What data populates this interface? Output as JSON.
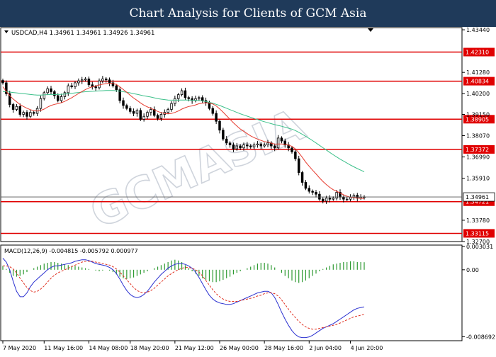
{
  "header": {
    "title": "Chart Analysis for Clients of GCM Asia"
  },
  "watermark": "GCMASIA",
  "colors": {
    "level_line": "#e00000",
    "ma_fast": "#e63a2e",
    "ma_slow": "#3cc08a",
    "candle": "#000000",
    "macd_hist": "#2e9a32",
    "macd_main": "#2a30d0",
    "macd_signal": "#e03020",
    "header_bg": "#1f3a5a"
  },
  "chart_data": [
    {
      "type": "candlestick",
      "title": "USDCAD,H4  1.34961 1.34961 1.34926 1.34961",
      "symbol": "USDCAD,H4",
      "ohlc_label": "1.34961 1.34961 1.34926 1.34961",
      "current_price": 1.34961,
      "current_price_label": "1.34961",
      "ylim": [
        1.327,
        1.4355
      ],
      "y_ticks": [
        "1.43440",
        "1.42310",
        "1.41280",
        "1.40834",
        "1.40200",
        "1.39150",
        "1.38905",
        "1.38070",
        "1.37372",
        "1.36990",
        "1.35910",
        "1.34961",
        "1.34721",
        "1.33780",
        "1.33115",
        "1.32700"
      ],
      "horizontal_levels": [
        1.4231,
        1.40834,
        1.38905,
        1.37372,
        1.34721,
        1.33115
      ],
      "level_labels": [
        "1.42310",
        "1.40834",
        "1.38905",
        "1.37372",
        "1.34721",
        "1.33115"
      ],
      "closes": [
        1.4075,
        1.402,
        1.3965,
        1.394,
        1.3955,
        1.3915,
        1.3925,
        1.3905,
        1.3925,
        1.392,
        1.3945,
        1.3995,
        1.4025,
        1.4045,
        1.403,
        1.401,
        1.3985,
        1.4005,
        1.4025,
        1.406,
        1.4055,
        1.4075,
        1.4085,
        1.409,
        1.4095,
        1.4065,
        1.4055,
        1.405,
        1.4085,
        1.4095,
        1.409,
        1.4075,
        1.406,
        1.404,
        1.3985,
        1.396,
        1.3945,
        1.393,
        1.392,
        1.3935,
        1.389,
        1.3905,
        1.3925,
        1.394,
        1.391,
        1.3895,
        1.3915,
        1.3925,
        1.394,
        1.397,
        1.3995,
        1.4015,
        1.4035,
        1.4,
        1.3995,
        1.3985,
        1.3995,
        1.4,
        1.3985,
        1.3975,
        1.3945,
        1.392,
        1.388,
        1.3835,
        1.379,
        1.377,
        1.376,
        1.374,
        1.3755,
        1.3745,
        1.376,
        1.3755,
        1.375,
        1.376,
        1.3765,
        1.3755,
        1.376,
        1.377,
        1.3755,
        1.3745,
        1.3795,
        1.378,
        1.376,
        1.3745,
        1.3725,
        1.369,
        1.362,
        1.357,
        1.354,
        1.3525,
        1.352,
        1.351,
        1.3485,
        1.3475,
        1.349,
        1.3485,
        1.349,
        1.352,
        1.3495,
        1.3485,
        1.3485,
        1.3495,
        1.3505,
        1.349,
        1.3495,
        1.34961
      ],
      "ma_fast": [
        1.4055,
        1.4032,
        1.401,
        1.3993,
        1.3979,
        1.3965,
        1.3955,
        1.3946,
        1.3939,
        1.3934,
        1.3932,
        1.3935,
        1.3942,
        1.3952,
        1.396,
        1.3966,
        1.3969,
        1.3974,
        1.3981,
        1.399,
        1.3999,
        1.401,
        1.4021,
        1.4031,
        1.4041,
        1.4049,
        1.4055,
        1.4059,
        1.4064,
        1.4068,
        1.4071,
        1.4072,
        1.4071,
        1.4067,
        1.4055,
        1.4041,
        1.4027,
        1.4012,
        1.3998,
        1.3986,
        1.3973,
        1.3962,
        1.3953,
        1.3946,
        1.3938,
        1.393,
        1.3924,
        1.392,
        1.3918,
        1.392,
        1.3925,
        1.3932,
        1.3942,
        1.3949,
        1.3955,
        1.3958,
        1.3963,
        1.3969,
        1.3972,
        1.3974,
        1.3972,
        1.3968,
        1.3958,
        1.3943,
        1.3926,
        1.3908,
        1.389,
        1.3872,
        1.3856,
        1.3841,
        1.3829,
        1.3817,
        1.3806,
        1.3797,
        1.379,
        1.3783,
        1.3777,
        1.3774,
        1.3769,
        1.3764,
        1.3765,
        1.3765,
        1.3763,
        1.3759,
        1.3753,
        1.374,
        1.372,
        1.3697,
        1.3673,
        1.3652,
        1.3632,
        1.3613,
        1.3593,
        1.3575,
        1.3559,
        1.3545,
        1.3533,
        1.3525,
        1.3516,
        1.3507,
        1.35,
        1.3495,
        1.3493,
        1.349,
        1.3489,
        1.3489
      ],
      "ma_slow_start_index": 0,
      "ma_slow": [
        1.403,
        1.403,
        1.4028,
        1.4026,
        1.4024,
        1.4022,
        1.402,
        1.4018,
        1.4016,
        1.4014,
        1.4013,
        1.4013,
        1.4014,
        1.4015,
        1.4016,
        1.4016,
        1.4016,
        1.4017,
        1.4018,
        1.402,
        1.4022,
        1.4024,
        1.4026,
        1.4028,
        1.403,
        1.4031,
        1.4032,
        1.4033,
        1.4034,
        1.4035,
        1.4036,
        1.4036,
        1.4036,
        1.4035,
        1.4033,
        1.403,
        1.4027,
        1.4024,
        1.402,
        1.4017,
        1.4013,
        1.4009,
        1.4006,
        1.4003,
        1.3999,
        1.3995,
        1.3992,
        1.399,
        1.3988,
        1.3987,
        1.3987,
        1.3987,
        1.3988,
        1.3988,
        1.3988,
        1.3987,
        1.3986,
        1.3985,
        1.3983,
        1.398,
        1.3976,
        1.3972,
        1.3966,
        1.396,
        1.3953,
        1.3946,
        1.3939,
        1.3932,
        1.3925,
        1.3918,
        1.3912,
        1.3906,
        1.39,
        1.3894,
        1.3889,
        1.3883,
        1.3878,
        1.3873,
        1.3868,
        1.3863,
        1.3859,
        1.3855,
        1.385,
        1.3845,
        1.384,
        1.3833,
        1.3824,
        1.3814,
        1.3804,
        1.3793,
        1.3782,
        1.377,
        1.3758,
        1.3746,
        1.3734,
        1.3722,
        1.371,
        1.3699,
        1.3688,
        1.3678,
        1.3668,
        1.3658,
        1.3649,
        1.364,
        1.3632,
        1.3624
      ]
    },
    {
      "type": "macd",
      "title": "MACD(12,26,9) -0.004815 -0.005792 0.000977",
      "name": "MACD(12,26,9)",
      "values_label": "-0.004815 -0.005792 0.000977",
      "ylim": [
        -0.0092,
        0.0032
      ],
      "y_ticks": [
        "0.003031",
        "0.00",
        "-0.008692"
      ],
      "histogram": [
        0.0005,
        0.0001,
        -0.0004,
        -0.0008,
        -0.0009,
        -0.0008,
        -0.0006,
        -0.0003,
        0.0,
        0.0002,
        0.0004,
        0.0006,
        0.0008,
        0.0009,
        0.001,
        0.001,
        0.0009,
        0.0008,
        0.0007,
        0.0006,
        0.0005,
        0.0005,
        0.0004,
        0.0003,
        0.0002,
        0.0001,
        0.0,
        -0.0001,
        -0.0002,
        -0.0001,
        0.0,
        -0.0001,
        -0.0003,
        -0.0006,
        -0.0009,
        -0.0011,
        -0.0012,
        -0.0011,
        -0.001,
        -0.0008,
        -0.0006,
        -0.0004,
        -0.0002,
        0.0,
        0.0002,
        0.0004,
        0.0006,
        0.0008,
        0.001,
        0.0012,
        0.0013,
        0.0012,
        0.001,
        0.0006,
        0.0002,
        -0.0002,
        -0.0005,
        -0.0008,
        -0.0011,
        -0.0013,
        -0.0015,
        -0.0016,
        -0.0016,
        -0.0015,
        -0.0013,
        -0.0011,
        -0.0009,
        -0.0006,
        -0.0004,
        -0.0002,
        0.0,
        0.0002,
        0.0004,
        0.0006,
        0.0008,
        0.0009,
        0.0009,
        0.0008,
        0.0006,
        0.0003,
        0.0,
        -0.0004,
        -0.0008,
        -0.0011,
        -0.0014,
        -0.0016,
        -0.0017,
        -0.0016,
        -0.0014,
        -0.0011,
        -0.0008,
        -0.0005,
        -0.0002,
        0.0001,
        0.0003,
        0.0005,
        0.0007,
        0.0008,
        0.0009,
        0.001,
        0.001,
        0.0011,
        0.0011,
        0.001,
        0.001,
        0.000977
      ],
      "main": [
        0.0015,
        0.001,
        0.0,
        -0.0015,
        -0.0028,
        -0.0035,
        -0.0035,
        -0.003,
        -0.0022,
        -0.0016,
        -0.0012,
        -0.0008,
        -0.0004,
        0.0,
        0.0003,
        0.0005,
        0.0005,
        0.0006,
        0.0007,
        0.0008,
        0.0009,
        0.0011,
        0.0012,
        0.0013,
        0.0013,
        0.0012,
        0.001,
        0.0008,
        0.0007,
        0.0006,
        0.0005,
        0.0003,
        0.0,
        -0.0005,
        -0.0012,
        -0.002,
        -0.0027,
        -0.0032,
        -0.0035,
        -0.0036,
        -0.0035,
        -0.0032,
        -0.0028,
        -0.0022,
        -0.0016,
        -0.0011,
        -0.0006,
        -0.0002,
        0.0002,
        0.0005,
        0.0007,
        0.0008,
        0.0008,
        0.0007,
        0.0005,
        0.0002,
        -0.0003,
        -0.001,
        -0.0018,
        -0.0026,
        -0.0033,
        -0.0038,
        -0.0041,
        -0.0043,
        -0.0044,
        -0.0045,
        -0.0045,
        -0.0044,
        -0.0042,
        -0.004,
        -0.0038,
        -0.0036,
        -0.0034,
        -0.0032,
        -0.003,
        -0.0029,
        -0.0028,
        -0.0028,
        -0.003,
        -0.0036,
        -0.0045,
        -0.0055,
        -0.0064,
        -0.0072,
        -0.0079,
        -0.0084,
        -0.0087,
        -0.0088,
        -0.0088,
        -0.0087,
        -0.0085,
        -0.0082,
        -0.0079,
        -0.0076,
        -0.0074,
        -0.0072,
        -0.007,
        -0.0067,
        -0.0064,
        -0.0061,
        -0.0058,
        -0.0055,
        -0.0052,
        -0.005,
        -0.0049,
        -0.004815
      ],
      "signal": [
        0.0005,
        0.0005,
        0.0004,
        0.0001,
        -0.0004,
        -0.0011,
        -0.0017,
        -0.0023,
        -0.0027,
        -0.0029,
        -0.0028,
        -0.0025,
        -0.0021,
        -0.0016,
        -0.0011,
        -0.0007,
        -0.0004,
        -0.0002,
        0.0,
        0.0002,
        0.0004,
        0.0006,
        0.0008,
        0.001,
        0.0011,
        0.0011,
        0.0011,
        0.001,
        0.0009,
        0.0008,
        0.0007,
        0.0006,
        0.0004,
        0.0001,
        -0.0003,
        -0.0008,
        -0.0013,
        -0.0018,
        -0.0023,
        -0.0027,
        -0.0029,
        -0.003,
        -0.0029,
        -0.0027,
        -0.0024,
        -0.002,
        -0.0016,
        -0.0012,
        -0.0008,
        -0.0005,
        -0.0002,
        0.0,
        0.0002,
        0.0003,
        0.0003,
        0.0002,
        0.0,
        -0.0003,
        -0.0008,
        -0.0014,
        -0.002,
        -0.0026,
        -0.0031,
        -0.0035,
        -0.0038,
        -0.004,
        -0.0041,
        -0.0041,
        -0.0041,
        -0.004,
        -0.0039,
        -0.0038,
        -0.0037,
        -0.0036,
        -0.0034,
        -0.0033,
        -0.0031,
        -0.003,
        -0.003,
        -0.0031,
        -0.0034,
        -0.0039,
        -0.0045,
        -0.0051,
        -0.0057,
        -0.0062,
        -0.0067,
        -0.0071,
        -0.0074,
        -0.0076,
        -0.0077,
        -0.0077,
        -0.0076,
        -0.0075,
        -0.0074,
        -0.0073,
        -0.0072,
        -0.0071,
        -0.0069,
        -0.0067,
        -0.0065,
        -0.0063,
        -0.0061,
        -0.006,
        -0.0059,
        -0.005792
      ]
    }
  ],
  "x_axis": {
    "labels": [
      "7 May 2020",
      "11 May 16:00",
      "14 May 08:00",
      "18 May 20:00",
      "21 May 12:00",
      "26 May 00:00",
      "28 May 16:00",
      "2 Jun 04:00",
      "4 Jun 20:00"
    ],
    "label_indices": [
      0,
      12,
      25,
      37,
      50,
      63,
      76,
      89,
      101
    ]
  }
}
